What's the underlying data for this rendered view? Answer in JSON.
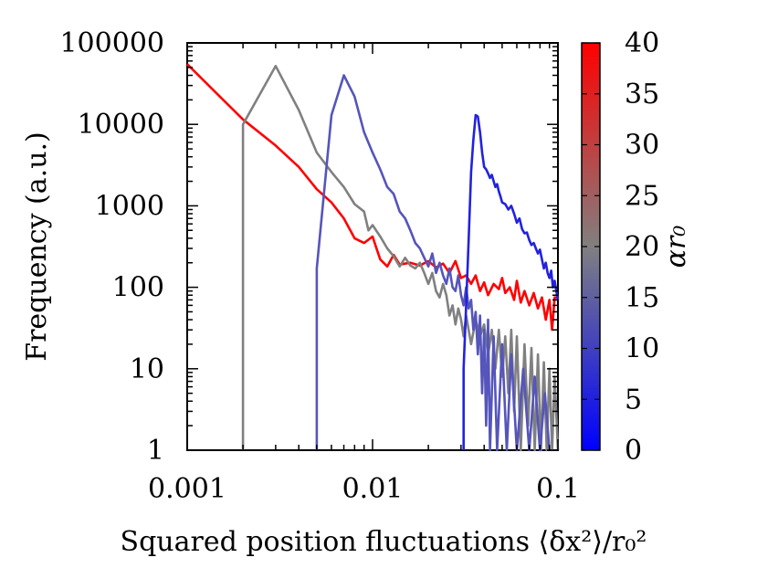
{
  "chart_data": {
    "type": "line",
    "xlabel": "Squared position fluctuations ⟨δx²⟩/r₀²",
    "ylabel": "Frequency (a.u.)",
    "xscale": "log",
    "yscale": "log",
    "xlim": [
      0.001,
      0.1
    ],
    "ylim": [
      1,
      100000
    ],
    "x_ticks": [
      {
        "value": 0.001,
        "label": "0.001"
      },
      {
        "value": 0.01,
        "label": "0.01"
      },
      {
        "value": 0.1,
        "label": "0.1"
      }
    ],
    "y_ticks": [
      {
        "value": 1,
        "label": "1"
      },
      {
        "value": 10,
        "label": "10"
      },
      {
        "value": 100,
        "label": "100"
      },
      {
        "value": 1000,
        "label": "1000"
      },
      {
        "value": 10000,
        "label": "10000"
      },
      {
        "value": 100000,
        "label": "100000"
      }
    ],
    "colorbar": {
      "label": "αr₀",
      "range": [
        0,
        40
      ],
      "ticks": [
        "0",
        "5",
        "10",
        "15",
        "20",
        "25",
        "30",
        "35",
        "40"
      ],
      "colors": [
        "#0000ff",
        "#808080",
        "#ff0000"
      ]
    },
    "series": [
      {
        "color": "#ff0000",
        "points": [
          [
            0.001,
            55000
          ],
          [
            0.0015,
            22000
          ],
          [
            0.002,
            11500
          ],
          [
            0.003,
            5500
          ],
          [
            0.004,
            3000
          ],
          [
            0.005,
            1600
          ],
          [
            0.006,
            1100
          ],
          [
            0.007,
            700
          ],
          [
            0.008,
            400
          ],
          [
            0.009,
            350
          ],
          [
            0.01,
            420
          ],
          [
            0.0105,
            300
          ],
          [
            0.011,
            220
          ],
          [
            0.012,
            180
          ],
          [
            0.013,
            250
          ],
          [
            0.014,
            190
          ],
          [
            0.016,
            200
          ],
          [
            0.018,
            185
          ],
          [
            0.02,
            210
          ],
          [
            0.022,
            175
          ],
          [
            0.024,
            195
          ],
          [
            0.026,
            150
          ],
          [
            0.028,
            210
          ],
          [
            0.03,
            130
          ],
          [
            0.032,
            140
          ],
          [
            0.034,
            110
          ],
          [
            0.036,
            140
          ],
          [
            0.038,
            90
          ],
          [
            0.04,
            115
          ],
          [
            0.042,
            80
          ],
          [
            0.045,
            110
          ],
          [
            0.048,
            95
          ],
          [
            0.05,
            130
          ],
          [
            0.052,
            85
          ],
          [
            0.055,
            100
          ],
          [
            0.058,
            70
          ],
          [
            0.06,
            120
          ],
          [
            0.063,
            65
          ],
          [
            0.066,
            90
          ],
          [
            0.07,
            60
          ],
          [
            0.074,
            85
          ],
          [
            0.078,
            55
          ],
          [
            0.082,
            75
          ],
          [
            0.086,
            40
          ],
          [
            0.09,
            70
          ],
          [
            0.093,
            30
          ],
          [
            0.096,
            75
          ],
          [
            0.1,
            75
          ]
        ]
      },
      {
        "color": "#808080",
        "points": [
          [
            0.002,
            1
          ],
          [
            0.002,
            10000
          ],
          [
            0.003,
            52000
          ],
          [
            0.004,
            15000
          ],
          [
            0.005,
            4500
          ],
          [
            0.006,
            2600
          ],
          [
            0.007,
            1700
          ],
          [
            0.008,
            1050
          ],
          [
            0.009,
            850
          ],
          [
            0.0095,
            500
          ],
          [
            0.01,
            580
          ],
          [
            0.011,
            420
          ],
          [
            0.012,
            300
          ],
          [
            0.013,
            240
          ],
          [
            0.014,
            180
          ],
          [
            0.015,
            230
          ],
          [
            0.016,
            185
          ],
          [
            0.017,
            170
          ],
          [
            0.018,
            200
          ],
          [
            0.019,
            150
          ],
          [
            0.02,
            110
          ],
          [
            0.021,
            150
          ],
          [
            0.022,
            90
          ],
          [
            0.023,
            75
          ],
          [
            0.024,
            110
          ],
          [
            0.025,
            80
          ],
          [
            0.026,
            45
          ],
          [
            0.027,
            60
          ],
          [
            0.028,
            35
          ],
          [
            0.029,
            55
          ],
          [
            0.03,
            40
          ],
          [
            0.031,
            25
          ],
          [
            0.032,
            45
          ],
          [
            0.034,
            20
          ],
          [
            0.036,
            40
          ],
          [
            0.038,
            25
          ],
          [
            0.04,
            35
          ],
          [
            0.042,
            15
          ],
          [
            0.044,
            30
          ],
          [
            0.046,
            10
          ],
          [
            0.048,
            30
          ],
          [
            0.05,
            8
          ],
          [
            0.052,
            25
          ],
          [
            0.054,
            5
          ],
          [
            0.056,
            30
          ],
          [
            0.058,
            3
          ],
          [
            0.06,
            25
          ],
          [
            0.063,
            1
          ],
          [
            0.066,
            20
          ],
          [
            0.069,
            2
          ],
          [
            0.072,
            18
          ],
          [
            0.075,
            1
          ],
          [
            0.078,
            15
          ],
          [
            0.081,
            1
          ],
          [
            0.084,
            12
          ],
          [
            0.087,
            1
          ],
          [
            0.09,
            10
          ],
          [
            0.093,
            1
          ],
          [
            0.096,
            8
          ],
          [
            0.1,
            1
          ]
        ]
      },
      {
        "color": "#5555bb",
        "points": [
          [
            0.005,
            1
          ],
          [
            0.005,
            170
          ],
          [
            0.006,
            13000
          ],
          [
            0.007,
            40000
          ],
          [
            0.008,
            22000
          ],
          [
            0.009,
            8000
          ],
          [
            0.01,
            4500
          ],
          [
            0.011,
            2800
          ],
          [
            0.012,
            1700
          ],
          [
            0.013,
            1400
          ],
          [
            0.014,
            850
          ],
          [
            0.015,
            700
          ],
          [
            0.016,
            500
          ],
          [
            0.017,
            350
          ],
          [
            0.018,
            300
          ],
          [
            0.019,
            230
          ],
          [
            0.02,
            180
          ],
          [
            0.021,
            260
          ],
          [
            0.022,
            150
          ],
          [
            0.023,
            200
          ],
          [
            0.024,
            140
          ],
          [
            0.025,
            110
          ],
          [
            0.026,
            170
          ],
          [
            0.027,
            100
          ],
          [
            0.028,
            90
          ],
          [
            0.029,
            140
          ],
          [
            0.03,
            80
          ],
          [
            0.031,
            60
          ],
          [
            0.032,
            100
          ],
          [
            0.033,
            55
          ],
          [
            0.034,
            70
          ],
          [
            0.035,
            30
          ],
          [
            0.036,
            50
          ],
          [
            0.037,
            15
          ],
          [
            0.038,
            45
          ],
          [
            0.039,
            5
          ],
          [
            0.04,
            30
          ],
          [
            0.041,
            2
          ],
          [
            0.042,
            40
          ],
          [
            0.043,
            1
          ],
          [
            0.045,
            25
          ],
          [
            0.047,
            1
          ],
          [
            0.05,
            20
          ],
          [
            0.053,
            1
          ],
          [
            0.056,
            15
          ],
          [
            0.06,
            1
          ],
          [
            0.065,
            10
          ],
          [
            0.07,
            1
          ],
          [
            0.075,
            8
          ],
          [
            0.08,
            1
          ],
          [
            0.085,
            5
          ],
          [
            0.09,
            1
          ]
        ]
      },
      {
        "color": "#2222dd",
        "points": [
          [
            0.031,
            1
          ],
          [
            0.031,
            10
          ],
          [
            0.032,
            60
          ],
          [
            0.033,
            400
          ],
          [
            0.034,
            2600
          ],
          [
            0.035,
            6500
          ],
          [
            0.036,
            13000
          ],
          [
            0.037,
            12500
          ],
          [
            0.038,
            8000
          ],
          [
            0.039,
            4500
          ],
          [
            0.04,
            3000
          ],
          [
            0.041,
            2800
          ],
          [
            0.042,
            2500
          ],
          [
            0.043,
            2200
          ],
          [
            0.044,
            2400
          ],
          [
            0.045,
            2000
          ],
          [
            0.046,
            1700
          ],
          [
            0.047,
            1850
          ],
          [
            0.048,
            1500
          ],
          [
            0.049,
            1300
          ],
          [
            0.05,
            1100
          ],
          [
            0.052,
            1050
          ],
          [
            0.054,
            900
          ],
          [
            0.056,
            1000
          ],
          [
            0.058,
            800
          ],
          [
            0.06,
            620
          ],
          [
            0.062,
            700
          ],
          [
            0.064,
            520
          ],
          [
            0.066,
            460
          ],
          [
            0.068,
            470
          ],
          [
            0.07,
            380
          ],
          [
            0.072,
            330
          ],
          [
            0.074,
            350
          ],
          [
            0.076,
            300
          ],
          [
            0.078,
            260
          ],
          [
            0.08,
            290
          ],
          [
            0.082,
            220
          ],
          [
            0.084,
            170
          ],
          [
            0.086,
            200
          ],
          [
            0.088,
            150
          ],
          [
            0.09,
            130
          ],
          [
            0.092,
            160
          ],
          [
            0.094,
            100
          ],
          [
            0.096,
            120
          ],
          [
            0.098,
            90
          ],
          [
            0.1,
            70
          ]
        ]
      }
    ]
  }
}
